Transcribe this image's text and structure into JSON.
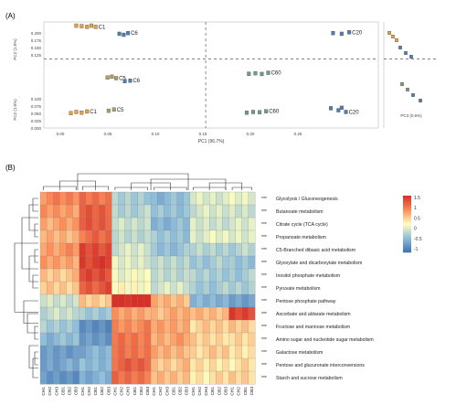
{
  "panel_a_label": "(A)",
  "panel_b_label": "(B)",
  "chart_data": [
    {
      "type": "scatter",
      "panel": "A",
      "xlabel": "PC1 (96.7%)",
      "ylabel_top": "PC2 (1.0%)",
      "ylabel_bottom": "PC2 (1.0%)",
      "side_xlabel": "PC3 (0.5%)",
      "xlim": [
        -0.04,
        0.27
      ],
      "ylim": [
        -0.21,
        0.22
      ],
      "x_ticks": [
        "0.00",
        "0.05",
        "0.10",
        "0.15",
        "0.20",
        "0.25"
      ],
      "y_ticks_top": [
        "0.200",
        "0.175",
        "0.150",
        "0.125"
      ],
      "y_ticks_bottom": [
        "0.100",
        "0.075",
        "0.050",
        "0.025",
        "0.000"
      ],
      "groups": [
        {
          "label": "C1",
          "color": "#e8a040",
          "points": [
            [
              -0.01,
              0.205
            ],
            [
              -0.005,
              0.203
            ],
            [
              0.0,
              0.2
            ],
            [
              0.004,
              0.205
            ],
            [
              0.008,
              0.2
            ]
          ]
        },
        {
          "label": "C6",
          "color": "#4a7fb0",
          "points": [
            [
              0.03,
              0.172
            ],
            [
              0.034,
              0.168
            ],
            [
              0.038,
              0.175
            ]
          ]
        },
        {
          "label": "C5",
          "color": "#b0a060",
          "points": [
            [
              0.019,
              -0.005
            ],
            [
              0.023,
              -0.002
            ],
            [
              0.027,
              -0.008
            ]
          ]
        },
        {
          "label": "C6",
          "color": "#4a7fb0",
          "points": [
            [
              0.035,
              -0.02
            ],
            [
              0.04,
              -0.018
            ]
          ]
        },
        {
          "label": "C5",
          "color": "#b0a060",
          "points": [
            [
              0.02,
              -0.14
            ],
            [
              0.025,
              -0.135
            ]
          ]
        },
        {
          "label": "C1",
          "color": "#e8a040",
          "points": [
            [
              -0.015,
              -0.15
            ],
            [
              -0.01,
              -0.145
            ],
            [
              -0.005,
              -0.148
            ],
            [
              0.0,
              -0.143
            ]
          ]
        },
        {
          "label": "C20",
          "color": "#4a7fb0",
          "points": [
            [
              0.228,
              0.175
            ],
            [
              0.236,
              0.172
            ],
            [
              0.243,
              0.178
            ]
          ]
        },
        {
          "label": "C20",
          "color": "#4a7fb0",
          "points": [
            [
              0.226,
              -0.13
            ],
            [
              0.233,
              -0.138
            ],
            [
              0.24,
              -0.145
            ],
            [
              0.236,
              -0.128
            ]
          ]
        },
        {
          "label": "C60",
          "color": "#6aa080",
          "points": [
            [
              0.15,
              0.01
            ],
            [
              0.156,
              0.012
            ],
            [
              0.162,
              0.009
            ],
            [
              0.168,
              0.014
            ]
          ]
        },
        {
          "label": "C60",
          "color": "#6aa080",
          "points": [
            [
              0.148,
              -0.148
            ],
            [
              0.154,
              -0.145
            ],
            [
              0.16,
              -0.146
            ],
            [
              0.166,
              -0.142
            ]
          ]
        }
      ]
    },
    {
      "type": "heatmap",
      "panel": "B",
      "legend_ticks": [
        "1.5",
        "1",
        "0.5",
        "0",
        "-0.5",
        "-1"
      ],
      "legend_range": [
        -1.5,
        1.5
      ],
      "columns": [
        "CH1",
        "CH2",
        "CH3",
        "CB1",
        "CB2",
        "CB3",
        "CH1",
        "CH2",
        "CB1",
        "CB2",
        "CB3",
        "CH1",
        "CH2",
        "CH3",
        "CB1",
        "CB2",
        "CB3",
        "CH1",
        "CH2",
        "CH3",
        "CB1",
        "CB2",
        "CB3",
        "CH1",
        "CH2",
        "CH3",
        "CB1",
        "CB2",
        "CB3",
        "CH1",
        "CH2",
        "CB1",
        "CB3"
      ],
      "rows": [
        {
          "label": "Glycolysis / Gluconeogenesis",
          "sig": "***"
        },
        {
          "label": "Butanoate metabolism",
          "sig": "***"
        },
        {
          "label": "Citrate cycle (TCA cycle)",
          "sig": "***"
        },
        {
          "label": "Propanoate metabolism",
          "sig": "***"
        },
        {
          "label": "C5-Branched dibasic acid metabolism",
          "sig": "***"
        },
        {
          "label": "Glyoxylate and dicarboxylate metabolism",
          "sig": "***"
        },
        {
          "label": "Inositol phosphate metabolism",
          "sig": "***"
        },
        {
          "label": "Pyruvate metabolism",
          "sig": "***"
        },
        {
          "label": "Pentose phosphate pathway",
          "sig": "***"
        },
        {
          "label": "Ascorbate and aldarate metabolism",
          "sig": "***"
        },
        {
          "label": "Fructose and mannose metabolism",
          "sig": "***"
        },
        {
          "label": "Amino sugar and nucleotide sugar metabolism",
          "sig": "***"
        },
        {
          "label": "Galactose metabolism",
          "sig": "***"
        },
        {
          "label": "Pentose and glucuronate interconversions",
          "sig": "***"
        },
        {
          "label": "Starch and sucrose metabolism",
          "sig": "***"
        }
      ],
      "group_values": [
        [
          0.8,
          1.0,
          -0.6,
          -0.8,
          -0.2,
          -0.2
        ],
        [
          0.7,
          1.1,
          -0.5,
          -0.7,
          -0.3,
          -0.3
        ],
        [
          0.6,
          1.2,
          -0.4,
          -0.8,
          -0.3,
          -0.3
        ],
        [
          0.5,
          1.0,
          -0.4,
          -0.7,
          -0.2,
          -0.2
        ],
        [
          0.7,
          1.3,
          -0.3,
          -0.7,
          -0.5,
          -0.5
        ],
        [
          0.6,
          1.4,
          -0.2,
          -0.5,
          -0.6,
          -0.7
        ],
        [
          0.4,
          1.3,
          -0.1,
          -0.4,
          -0.6,
          -0.6
        ],
        [
          0.3,
          1.2,
          0.0,
          -0.3,
          -0.6,
          -0.6
        ],
        [
          -0.3,
          0.3,
          1.6,
          0.5,
          -0.9,
          -1.0
        ],
        [
          -0.4,
          -0.6,
          0.6,
          0.5,
          0.5,
          1.3
        ],
        [
          -0.6,
          -1.3,
          0.8,
          0.6,
          0.3,
          0.4
        ],
        [
          -0.8,
          -1.1,
          0.9,
          0.6,
          0.3,
          0.2
        ],
        [
          -1.1,
          -0.9,
          1.0,
          0.5,
          0.3,
          0.2
        ],
        [
          -1.0,
          -0.8,
          1.1,
          0.4,
          0.2,
          0.2
        ],
        [
          -1.2,
          -0.9,
          1.0,
          0.4,
          0.2,
          0.3
        ]
      ]
    }
  ]
}
